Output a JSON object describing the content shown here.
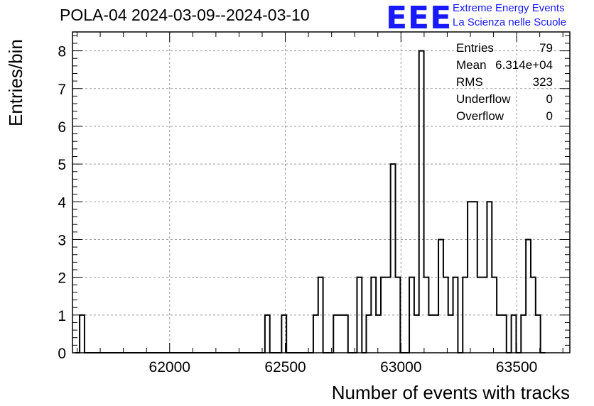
{
  "header": {
    "title": "POLA-04 2024-03-09--2024-03-10",
    "logo_text": "EEE",
    "logo_line1": "Extreme Energy Events",
    "logo_line2": "La Scienza nelle Scuole",
    "logo_color": "#1a1aff"
  },
  "stats": [
    {
      "label": "Entries",
      "value": "79"
    },
    {
      "label": "Mean",
      "value": "6.314e+04"
    },
    {
      "label": "RMS",
      "value": "323"
    },
    {
      "label": "Underflow",
      "value": "0"
    },
    {
      "label": "Overflow",
      "value": "0"
    }
  ],
  "chart_data": {
    "type": "bar",
    "style": "step-histogram",
    "xlabel": "Number of events with tracks",
    "ylabel": "Entries/bin",
    "xlim": [
      61580,
      63730
    ],
    "ylim": [
      0,
      8.5
    ],
    "bin_width": 21,
    "grid": true,
    "x_ticks": [
      62000,
      62500,
      63000,
      63500
    ],
    "y_ticks": [
      0,
      1,
      2,
      3,
      4,
      5,
      6,
      7,
      8
    ],
    "bins": [
      {
        "x": 61590,
        "y": 0
      },
      {
        "x": 61611,
        "y": 1
      },
      {
        "x": 61632,
        "y": 0
      },
      {
        "x": 62412,
        "y": 1
      },
      {
        "x": 62433,
        "y": 0
      },
      {
        "x": 62484,
        "y": 1
      },
      {
        "x": 62505,
        "y": 0
      },
      {
        "x": 62621,
        "y": 1
      },
      {
        "x": 62642,
        "y": 2
      },
      {
        "x": 62663,
        "y": 0
      },
      {
        "x": 62708,
        "y": 1
      },
      {
        "x": 62771,
        "y": 0
      },
      {
        "x": 62810,
        "y": 2
      },
      {
        "x": 62831,
        "y": 0
      },
      {
        "x": 62850,
        "y": 1
      },
      {
        "x": 62871,
        "y": 2
      },
      {
        "x": 62892,
        "y": 1
      },
      {
        "x": 62913,
        "y": 2
      },
      {
        "x": 62955,
        "y": 5
      },
      {
        "x": 62976,
        "y": 2
      },
      {
        "x": 62997,
        "y": 0
      },
      {
        "x": 63036,
        "y": 2
      },
      {
        "x": 63057,
        "y": 1
      },
      {
        "x": 63078,
        "y": 8
      },
      {
        "x": 63099,
        "y": 2
      },
      {
        "x": 63120,
        "y": 1
      },
      {
        "x": 63162,
        "y": 3
      },
      {
        "x": 63183,
        "y": 2
      },
      {
        "x": 63204,
        "y": 1
      },
      {
        "x": 63225,
        "y": 2
      },
      {
        "x": 63246,
        "y": 0
      },
      {
        "x": 63267,
        "y": 2
      },
      {
        "x": 63288,
        "y": 4
      },
      {
        "x": 63330,
        "y": 2
      },
      {
        "x": 63372,
        "y": 4
      },
      {
        "x": 63393,
        "y": 2
      },
      {
        "x": 63414,
        "y": 1
      },
      {
        "x": 63456,
        "y": 0
      },
      {
        "x": 63477,
        "y": 1
      },
      {
        "x": 63498,
        "y": 0
      },
      {
        "x": 63519,
        "y": 1
      },
      {
        "x": 63540,
        "y": 3
      },
      {
        "x": 63561,
        "y": 2
      },
      {
        "x": 63582,
        "y": 1
      },
      {
        "x": 63603,
        "y": 0
      }
    ]
  }
}
